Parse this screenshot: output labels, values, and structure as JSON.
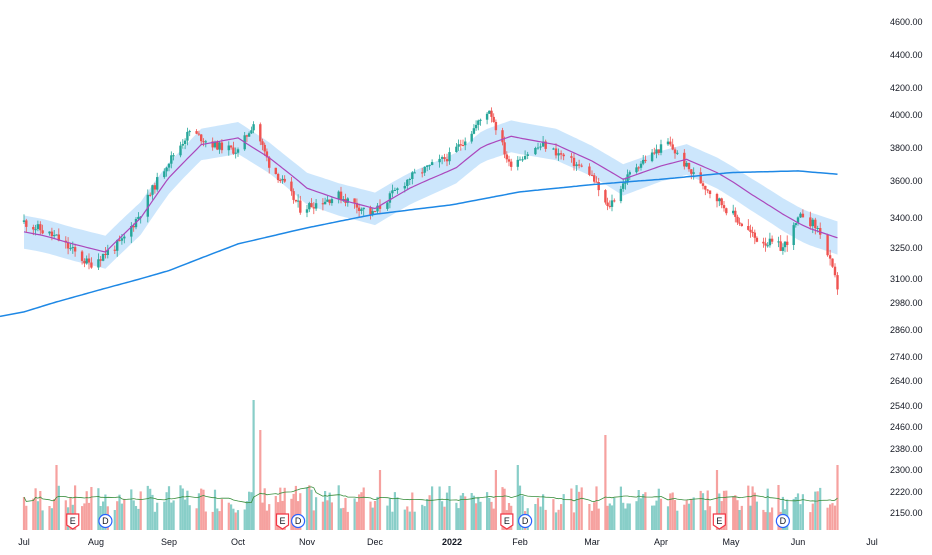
{
  "chart_data": {
    "type": "candlestick",
    "y_axis": {
      "ticks": [
        "4600.00",
        "4400.00",
        "4200.00",
        "4000.00",
        "3800.00",
        "3600.00",
        "3400.00",
        "3250.00",
        "3100.00",
        "2980.00",
        "2860.00",
        "2740.00",
        "2640.00",
        "2540.00",
        "2460.00",
        "2380.00",
        "2300.00",
        "2220.00",
        "2150.00"
      ],
      "ylim": [
        2100,
        4700
      ],
      "scale": "log"
    },
    "x_axis": {
      "ticks": [
        "Jul",
        "Aug",
        "Sep",
        "Oct",
        "Nov",
        "Dec",
        "2022",
        "Feb",
        "Mar",
        "Apr",
        "May",
        "Jun",
        "Jul"
      ],
      "xlim": [
        "2021-07-01",
        "2022-07-15"
      ]
    },
    "series": [
      {
        "kind": "price",
        "sample_close": [
          [
            "2021-07-01",
            3380
          ],
          [
            "2021-07-15",
            3300
          ],
          [
            "2021-07-29",
            3170
          ],
          [
            "2021-08-12",
            3280
          ],
          [
            "2021-08-20",
            3430
          ],
          [
            "2021-08-31",
            3700
          ],
          [
            "2021-09-10",
            3900
          ],
          [
            "2021-09-20",
            3820
          ],
          [
            "2021-10-01",
            3780
          ],
          [
            "2021-10-08",
            3950
          ],
          [
            "2021-10-15",
            3700
          ],
          [
            "2021-10-29",
            3450
          ],
          [
            "2021-11-15",
            3520
          ],
          [
            "2021-11-30",
            3420
          ],
          [
            "2021-12-15",
            3620
          ],
          [
            "2021-12-31",
            3750
          ],
          [
            "2022-01-10",
            3900
          ],
          [
            "2022-01-18",
            4040
          ],
          [
            "2022-01-27",
            3700
          ],
          [
            "2022-02-10",
            3820
          ],
          [
            "2022-02-28",
            3650
          ],
          [
            "2022-03-08",
            3450
          ],
          [
            "2022-03-20",
            3680
          ],
          [
            "2022-04-04",
            3830
          ],
          [
            "2022-04-14",
            3650
          ],
          [
            "2022-04-29",
            3450
          ],
          [
            "2022-05-12",
            3300
          ],
          [
            "2022-05-25",
            3250
          ],
          [
            "2022-06-03",
            3420
          ],
          [
            "2022-06-10",
            3330
          ],
          [
            "2022-06-17",
            3060
          ]
        ]
      },
      {
        "kind": "moving_average_short",
        "color": "#ab47bc",
        "points": [
          [
            "2021-07-01",
            3330
          ],
          [
            "2021-07-10",
            3310
          ],
          [
            "2021-07-22",
            3270
          ],
          [
            "2021-08-05",
            3230
          ],
          [
            "2021-08-20",
            3400
          ],
          [
            "2021-09-01",
            3620
          ],
          [
            "2021-09-15",
            3820
          ],
          [
            "2021-10-01",
            3860
          ],
          [
            "2021-10-15",
            3740
          ],
          [
            "2021-11-01",
            3560
          ],
          [
            "2021-11-15",
            3500
          ],
          [
            "2021-12-01",
            3450
          ],
          [
            "2021-12-15",
            3560
          ],
          [
            "2022-01-03",
            3680
          ],
          [
            "2022-01-15",
            3810
          ],
          [
            "2022-01-28",
            3870
          ],
          [
            "2022-02-15",
            3820
          ],
          [
            "2022-03-01",
            3720
          ],
          [
            "2022-03-15",
            3610
          ],
          [
            "2022-04-01",
            3690
          ],
          [
            "2022-04-12",
            3730
          ],
          [
            "2022-04-25",
            3650
          ],
          [
            "2022-05-10",
            3530
          ],
          [
            "2022-05-25",
            3420
          ],
          [
            "2022-06-05",
            3350
          ],
          [
            "2022-06-17",
            3300
          ]
        ]
      },
      {
        "kind": "moving_average_long",
        "color": "#1e88e5",
        "points": [
          [
            "2021-07-01",
            2940
          ],
          [
            "2021-08-01",
            3040
          ],
          [
            "2021-09-01",
            3140
          ],
          [
            "2021-10-01",
            3270
          ],
          [
            "2021-11-01",
            3350
          ],
          [
            "2021-12-01",
            3420
          ],
          [
            "2022-01-01",
            3470
          ],
          [
            "2022-02-01",
            3540
          ],
          [
            "2022-03-01",
            3580
          ],
          [
            "2022-04-01",
            3610
          ],
          [
            "2022-05-01",
            3650
          ],
          [
            "2022-06-01",
            3660
          ],
          [
            "2022-06-17",
            3640
          ]
        ]
      }
    ],
    "volume": {
      "avg_color": "#388e3c",
      "spikes": [
        [
          "2021-07-15",
          1.3
        ],
        [
          "2021-10-08",
          2.6
        ],
        [
          "2021-10-11",
          2.0
        ],
        [
          "2021-12-03",
          1.2
        ],
        [
          "2022-01-21",
          1.2
        ],
        [
          "2022-01-31",
          1.3
        ],
        [
          "2022-03-07",
          1.9
        ],
        [
          "2022-04-25",
          1.2
        ],
        [
          "2022-06-17",
          1.3
        ]
      ]
    },
    "event_markers": [
      {
        "label": "E",
        "date": "2021-07-22",
        "kind": "earnings"
      },
      {
        "label": "D",
        "date": "2021-08-05",
        "kind": "dividend"
      },
      {
        "label": "E",
        "date": "2021-10-21",
        "kind": "earnings"
      },
      {
        "label": "D",
        "date": "2021-10-28",
        "kind": "dividend"
      },
      {
        "label": "E",
        "date": "2022-01-26",
        "kind": "earnings"
      },
      {
        "label": "D",
        "date": "2022-02-03",
        "kind": "dividend"
      },
      {
        "label": "E",
        "date": "2022-04-26",
        "kind": "earnings"
      },
      {
        "label": "D",
        "date": "2022-05-25",
        "kind": "dividend"
      }
    ],
    "colors": {
      "up": "#26a69a",
      "down": "#ef5350",
      "band": "#bbdefb",
      "axis_text": "#131722"
    }
  }
}
